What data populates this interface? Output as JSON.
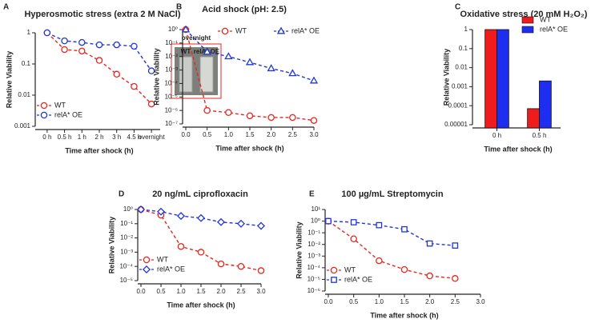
{
  "chart_data": [
    {
      "type": "line",
      "panel": "A",
      "title": "Hyperosmotic stress (extra 2 M NaCl)",
      "x_label": "Time after shock (h)",
      "y_label": "Relative Viability",
      "categories": [
        "0 h",
        "0.5 h",
        "1 h",
        "2 h",
        "3 h",
        "4.5 h",
        "overnight"
      ],
      "log_y": true,
      "ylim": [
        0.001,
        1
      ],
      "yticks": [
        0.001,
        0.01,
        0.1,
        1
      ],
      "legend": "lower left",
      "series": [
        {
          "name": "WT",
          "color": "#e8261f",
          "marker": "circle",
          "values": [
            1,
            0.29,
            0.26,
            0.13,
            0.047,
            0.019,
            0.0052
          ]
        },
        {
          "name": "relA* OE",
          "color": "#2036d6",
          "marker": "circle",
          "values": [
            1,
            0.55,
            0.49,
            0.41,
            0.41,
            0.37,
            0.06
          ]
        }
      ],
      "inset": {
        "title": "overnight",
        "labels": [
          "WT",
          "relA* OE"
        ]
      }
    },
    {
      "type": "line",
      "panel": "B",
      "title": "Acid shock (pH: 2.5)",
      "x_label": "Time after shock (h)",
      "y_label": "Relative Viability",
      "x": [
        0,
        0.5,
        1,
        1.5,
        2,
        2.5,
        3
      ],
      "xlim": [
        0,
        3
      ],
      "xticks": [
        {
          "value": 0,
          "label": "0.0"
        },
        {
          "value": 0.5,
          "label": "0.5"
        },
        {
          "value": 1,
          "label": "1.0"
        },
        {
          "value": 1.5,
          "label": "1.5"
        },
        {
          "value": 2,
          "label": "2.0"
        },
        {
          "value": 2.5,
          "label": "2.5"
        },
        {
          "value": 3,
          "label": "3.0"
        }
      ],
      "log_y": true,
      "ylim": [
        1e-07,
        1
      ],
      "yticks": [
        {
          "value": 1e-07,
          "label": "10⁻⁷"
        },
        {
          "value": 1e-06,
          "label": "10⁻⁶"
        },
        {
          "value": 1e-05,
          "label": "10⁻⁵"
        },
        {
          "value": 0.0001,
          "label": "10⁻⁴"
        },
        {
          "value": 0.001,
          "label": "10⁻³"
        },
        {
          "value": 0.01,
          "label": "10⁻²"
        },
        {
          "value": 0.1,
          "label": "10⁻¹"
        },
        {
          "value": 1,
          "label": "10⁰"
        }
      ],
      "legend": "upper right",
      "legend_layout": "horizontal",
      "series": [
        {
          "name": "WT",
          "color": "#e8261f",
          "marker": "circle",
          "values": [
            1,
            1e-06,
            7e-07,
            4e-07,
            3e-07,
            3e-07,
            1.8e-07
          ]
        },
        {
          "name": "relA* OE",
          "color": "#2036d6",
          "marker": "triangle",
          "values": [
            1,
            0.022,
            0.01,
            0.0037,
            0.0013,
            0.00056,
            0.00016
          ]
        }
      ]
    },
    {
      "type": "bar",
      "panel": "C",
      "title": "Oxidative stress (20 mM H₂O₂)",
      "x_label": "Time after shock (h)",
      "y_label": "Relative Viability",
      "categories": [
        "0 h",
        "0.5 h"
      ],
      "log_y": true,
      "ylim": [
        1e-05,
        1
      ],
      "yticks": [
        1e-05,
        0.0001,
        0.001,
        0.01,
        0.1,
        1
      ],
      "legend": "upper right",
      "series": [
        {
          "name": "WT",
          "color": "#ee1c1c",
          "values": [
            1,
            7e-05
          ]
        },
        {
          "name": "relA* OE",
          "color": "#1e2ef0",
          "values": [
            1,
            0.002
          ]
        }
      ]
    },
    {
      "type": "line",
      "panel": "D",
      "title": "20 ng/mL ciprofloxacin",
      "x_label": "Time after shock (h)",
      "y_label": "Relative Viability",
      "x": [
        0,
        0.5,
        1,
        1.5,
        2,
        2.5,
        3
      ],
      "xlim": [
        0,
        3
      ],
      "xticks": [
        {
          "value": 0,
          "label": "0.0"
        },
        {
          "value": 0.5,
          "label": "0.5"
        },
        {
          "value": 1,
          "label": "1.0"
        },
        {
          "value": 1.5,
          "label": "1.5"
        },
        {
          "value": 2,
          "label": "2.0"
        },
        {
          "value": 2.5,
          "label": "2.5"
        },
        {
          "value": 3,
          "label": "3.0"
        }
      ],
      "log_y": true,
      "ylim": [
        1e-05,
        1
      ],
      "yticks": [
        {
          "value": 1e-05,
          "label": "10⁻⁵"
        },
        {
          "value": 0.0001,
          "label": "10⁻⁴"
        },
        {
          "value": 0.001,
          "label": "10⁻³"
        },
        {
          "value": 0.01,
          "label": "10⁻²"
        },
        {
          "value": 0.1,
          "label": "10⁻¹"
        },
        {
          "value": 1,
          "label": "10⁰"
        }
      ],
      "legend": "lower left",
      "series": [
        {
          "name": "WT",
          "color": "#e8261f",
          "marker": "circle",
          "values": [
            1,
            0.4,
            0.0025,
            0.001,
            0.00015,
            0.0001,
            5e-05
          ]
        },
        {
          "name": "relA* OE",
          "color": "#2036d6",
          "marker": "diamond",
          "values": [
            1,
            0.7,
            0.35,
            0.25,
            0.13,
            0.1,
            0.07
          ]
        }
      ]
    },
    {
      "type": "line",
      "panel": "E",
      "title": "100 µg/mL Streptomycin",
      "x_label": "Time after shock (h)",
      "y_label": "Relative Viability",
      "x": [
        0,
        0.5,
        1,
        1.5,
        2,
        2.5
      ],
      "xlim": [
        0,
        3
      ],
      "xticks": [
        {
          "value": 0,
          "label": "0.0"
        },
        {
          "value": 0.5,
          "label": "0.5"
        },
        {
          "value": 1,
          "label": "1.0"
        },
        {
          "value": 1.5,
          "label": "1.5"
        },
        {
          "value": 2,
          "label": "2.0"
        },
        {
          "value": 2.5,
          "label": "2.5"
        },
        {
          "value": 3,
          "label": "3.0"
        }
      ],
      "log_y": true,
      "ylim": [
        1e-06,
        10
      ],
      "yticks": [
        {
          "value": 1e-06,
          "label": "10⁻⁶"
        },
        {
          "value": 1e-05,
          "label": "10⁻⁵"
        },
        {
          "value": 0.0001,
          "label": "10⁻⁴"
        },
        {
          "value": 0.001,
          "label": "10⁻³"
        },
        {
          "value": 0.01,
          "label": "10⁻²"
        },
        {
          "value": 0.1,
          "label": "10⁻¹"
        },
        {
          "value": 1,
          "label": "10⁰"
        },
        {
          "value": 10,
          "label": "10¹"
        }
      ],
      "legend": "lower left",
      "series": [
        {
          "name": "WT",
          "color": "#e8261f",
          "marker": "circle",
          "values": [
            1,
            0.03,
            0.0004,
            7e-05,
            2e-05,
            1.2e-05
          ]
        },
        {
          "name": "relA* OE",
          "color": "#2036d6",
          "marker": "square",
          "values": [
            1,
            0.8,
            0.45,
            0.2,
            0.012,
            0.008
          ]
        }
      ]
    }
  ]
}
